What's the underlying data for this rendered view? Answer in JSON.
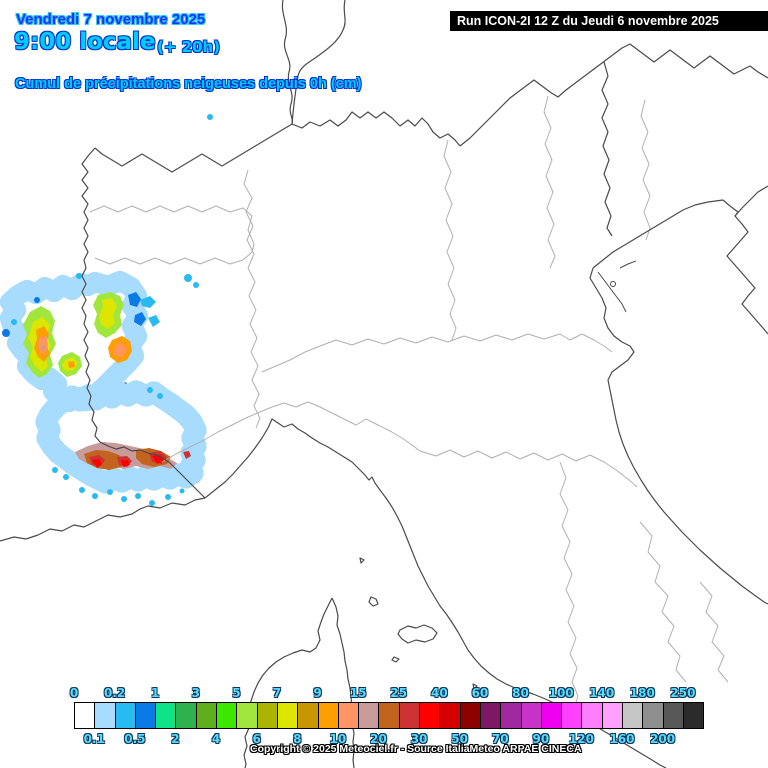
{
  "header": {
    "date_line": "Vendredi 7 novembre 2025",
    "time_line": "9:00 locale",
    "run_offset": "(+ 20h)",
    "subtitle": "Cumul de précipitations neigeuses depuis 0h (cm)",
    "run_info": "Run ICON-2I 12 Z du Jeudi 6 novembre 2025"
  },
  "footer": {
    "copyright": "Copyright © 2025 Meteociel.fr - Source ItaliaMeteo ARPAE CINECA"
  },
  "legend": {
    "unit": "cm",
    "cells": [
      {
        "boundary_label": "0",
        "label_position": "top",
        "color": "#ffffff"
      },
      {
        "boundary_label": "0.1",
        "label_position": "bottom",
        "color": "#a8dcff"
      },
      {
        "boundary_label": "0.2",
        "label_position": "top",
        "color": "#29baf0"
      },
      {
        "boundary_label": "0.5",
        "label_position": "bottom",
        "color": "#0a7ae6"
      },
      {
        "boundary_label": "1",
        "label_position": "top",
        "color": "#0fe387"
      },
      {
        "boundary_label": "2",
        "label_position": "bottom",
        "color": "#2eb24d"
      },
      {
        "boundary_label": "3",
        "label_position": "top",
        "color": "#5fae1e"
      },
      {
        "boundary_label": "4",
        "label_position": "bottom",
        "color": "#3ce800"
      },
      {
        "boundary_label": "5",
        "label_position": "top",
        "color": "#a0e63c"
      },
      {
        "boundary_label": "6",
        "label_position": "bottom",
        "color": "#abb400"
      },
      {
        "boundary_label": "7",
        "label_position": "top",
        "color": "#dce600"
      },
      {
        "boundary_label": "8",
        "label_position": "bottom",
        "color": "#c89600"
      },
      {
        "boundary_label": "9",
        "label_position": "top",
        "color": "#ff9e00"
      },
      {
        "boundary_label": "10",
        "label_position": "bottom",
        "color": "#ff9464"
      },
      {
        "boundary_label": "15",
        "label_position": "top",
        "color": "#c89a9a"
      },
      {
        "boundary_label": "20",
        "label_position": "bottom",
        "color": "#c3641e"
      },
      {
        "boundary_label": "25",
        "label_position": "top",
        "color": "#cd3232"
      },
      {
        "boundary_label": "30",
        "label_position": "bottom",
        "color": "#ff0000"
      },
      {
        "boundary_label": "40",
        "label_position": "top",
        "color": "#d40000"
      },
      {
        "boundary_label": "50",
        "label_position": "bottom",
        "color": "#8c0000"
      },
      {
        "boundary_label": "60",
        "label_position": "top",
        "color": "#7d1964"
      },
      {
        "boundary_label": "70",
        "label_position": "bottom",
        "color": "#a028a0"
      },
      {
        "boundary_label": "80",
        "label_position": "top",
        "color": "#c832c8"
      },
      {
        "boundary_label": "90",
        "label_position": "bottom",
        "color": "#f000f0"
      },
      {
        "boundary_label": "100",
        "label_position": "top",
        "color": "#ff40ff"
      },
      {
        "boundary_label": "120",
        "label_position": "bottom",
        "color": "#ff7dff"
      },
      {
        "boundary_label": "140",
        "label_position": "top",
        "color": "#ffa0ff"
      },
      {
        "boundary_label": "160",
        "label_position": "bottom",
        "color": "#c6c6c6"
      },
      {
        "boundary_label": "180",
        "label_position": "top",
        "color": "#8f8f8f"
      },
      {
        "boundary_label": "200",
        "label_position": "bottom",
        "color": "#575757"
      },
      {
        "boundary_label": "250",
        "label_position": "top",
        "color": "#2b2b2b"
      }
    ]
  },
  "colors": {
    "title_blue": "#1a35f0",
    "title_cyan": "#00ccff",
    "outline_blue": "#0033cc",
    "outline_cyan": "#29c8f5",
    "legend_label": "#55ddff",
    "legend_label_outline": "#113355",
    "run_box_bg": "#000000",
    "run_box_text": "#ffffff",
    "border_national": "#4a4a4a",
    "border_regional": "#b0b0b0",
    "background": "#ffffff"
  }
}
